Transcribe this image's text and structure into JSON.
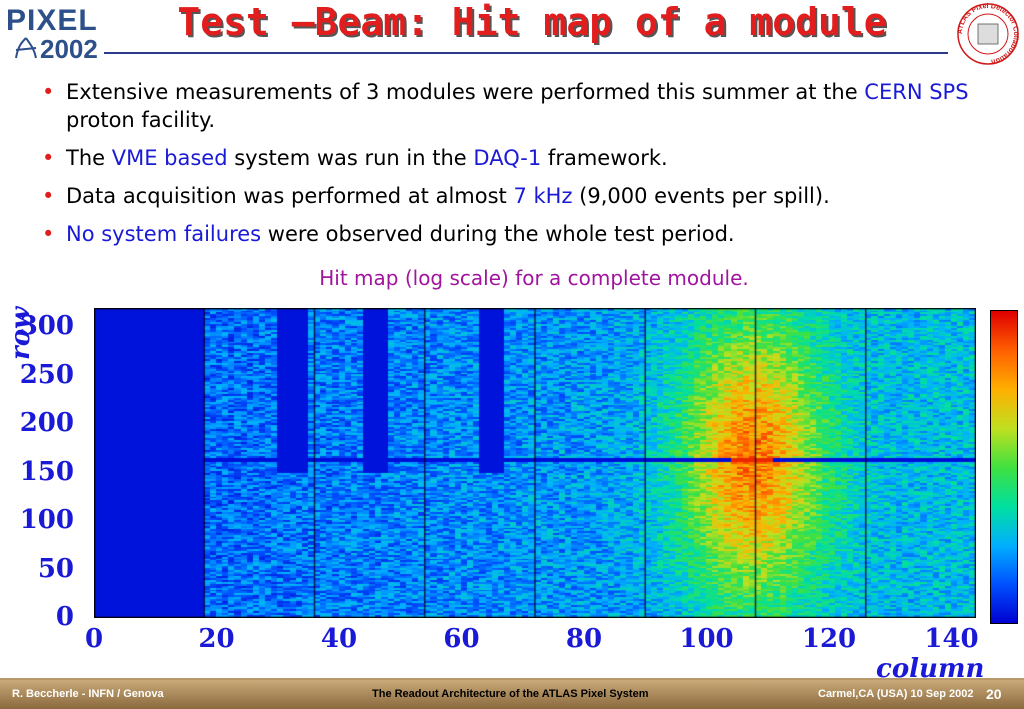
{
  "logo": {
    "line1": "PIXEL",
    "line2": "2002"
  },
  "badge": {
    "text": "ATLAS Pixel Detector Collaboration"
  },
  "title": "Test –Beam: Hit map of a module",
  "bullets": [
    {
      "parts": [
        {
          "t": "Extensive measurements of 3 modules were performed this summer at the ",
          "hl": false
        },
        {
          "t": "CERN SPS",
          "hl": true
        },
        {
          "t": " proton facility.",
          "hl": false
        }
      ]
    },
    {
      "parts": [
        {
          "t": "The ",
          "hl": false
        },
        {
          "t": "VME based",
          "hl": true
        },
        {
          "t": " system was run in the ",
          "hl": false
        },
        {
          "t": "DAQ-1",
          "hl": true
        },
        {
          "t": " framework.",
          "hl": false
        }
      ]
    },
    {
      "parts": [
        {
          "t": "Data acquisition was performed at almost ",
          "hl": false
        },
        {
          "t": "7 kHz",
          "hl": true
        },
        {
          "t": "  (9,000 events per spill).",
          "hl": false
        }
      ]
    },
    {
      "parts": [
        {
          "t": "No system failures",
          "hl": true
        },
        {
          "t": " were observed during the whole test period.",
          "hl": false
        }
      ]
    }
  ],
  "caption": "Hit map (log scale) for a complete module.",
  "chart_data": {
    "type": "heatmap",
    "xlabel": "column",
    "ylabel": "row",
    "xlim": [
      0,
      144
    ],
    "ylim": [
      0,
      320
    ],
    "x_ticks": [
      "0",
      "20",
      "40",
      "60",
      "80",
      "100",
      "120",
      "140"
    ],
    "y_ticks": [
      "0",
      "50",
      "100",
      "150",
      "200",
      "250",
      "300"
    ],
    "scale": "log",
    "beam_center": {
      "column": 107,
      "row": 164
    },
    "empty_columns": [
      [
        0,
        18
      ],
      [
        30,
        35
      ],
      [
        44,
        48
      ],
      [
        63,
        67
      ]
    ],
    "bright_row": 164,
    "colormap": [
      "#0000d0",
      "#0050ff",
      "#00b0ff",
      "#00e0a0",
      "#40e040",
      "#c0e020",
      "#ffb000",
      "#ff6000",
      "#e00000"
    ],
    "grid": false
  },
  "footer": {
    "left": "R. Beccherle - INFN / Genova",
    "center": "The Readout Architecture of the ATLAS Pixel System",
    "right": "Carmel,CA (USA) 10 Sep 2002",
    "page": "20"
  }
}
